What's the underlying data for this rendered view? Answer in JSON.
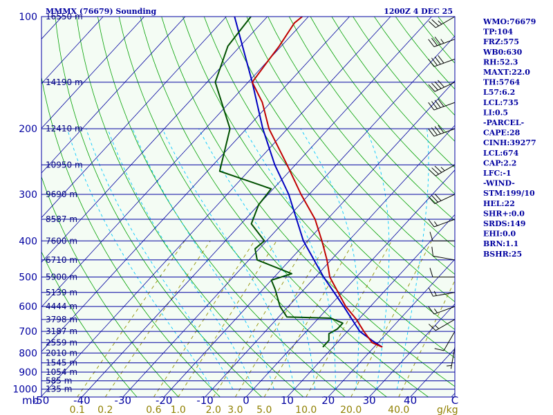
{
  "header": {
    "station": "MMMX (76679) Sounding",
    "time": "1200Z  4 DEC 25"
  },
  "stats": [
    "WMO:76679",
    "TP:104",
    "FRZ:575",
    "WB0:630",
    "RH:52.3",
    "MAXT:22.0",
    "TH:5764",
    "L57:6.2",
    "LCL:735",
    "LI:0.5",
    "-PARCEL-",
    "CAPE:28",
    "CINH:39277",
    "LCL:674",
    "CAP:2.2",
    "LFC:-1",
    "-WIND-",
    "STM:199/10",
    "HEL:22",
    "SHR+:0.0",
    "SRDS:149",
    "EHI:0.0",
    "BRN:1.1",
    "BSHR:25"
  ],
  "axis": {
    "pressure_unit": "mb",
    "mixing_ratio_unit": "g/kg",
    "temperature_end_label": "C"
  },
  "colors": {
    "frame": "#0000a0",
    "isobar": "#0000a0",
    "isotherm": "#0000a0",
    "dry_adiabat": "#00a000",
    "moist_adiabat": "#00c8ff",
    "mixing_ratio": "#909000",
    "temperature": "#c00000",
    "dewpoint": "#005000",
    "parcel": "#0000c0",
    "wind": "#000000",
    "text": "#0000a0",
    "mixing_label": "#908000"
  },
  "chart_data": {
    "type": "skew-t",
    "title": "MMMX (76679) Sounding",
    "pressure_levels": [
      1000,
      900,
      800,
      700,
      600,
      500,
      400,
      300,
      200,
      100
    ],
    "pressure_tick_labels": [
      "1000",
      "900",
      "800",
      "700",
      "600",
      "500",
      "400",
      "300",
      "200",
      "100"
    ],
    "plim": [
      1050,
      100
    ],
    "temperature_ticks": [
      -50,
      -40,
      -30,
      -20,
      -10,
      0,
      10,
      20,
      30,
      40
    ],
    "temperature_tick_labels": [
      "-50",
      "-40",
      "-30",
      "-20",
      "-10",
      "0",
      "10",
      "20",
      "30",
      "40"
    ],
    "mixing_ratio_ticks": [
      0.1,
      0.2,
      0.6,
      1.0,
      2.0,
      3.0,
      5.0,
      10.0,
      20.0,
      40.0
    ],
    "mixing_ratio_tick_labels": [
      "0.1",
      "0.2",
      "0.6",
      "1.0",
      "2.0",
      "3.0",
      "5.0",
      "10.0",
      "20.0",
      "40.0"
    ],
    "heights": [
      {
        "p": 1000,
        "label": "135 m"
      },
      {
        "p": 950,
        "label": "585 m"
      },
      {
        "p": 900,
        "label": "1054 m"
      },
      {
        "p": 850,
        "label": "1545 m"
      },
      {
        "p": 800,
        "label": "2010 m"
      },
      {
        "p": 750,
        "label": "2559 m"
      },
      {
        "p": 700,
        "label": "3187 m"
      },
      {
        "p": 650,
        "label": "3798 m"
      },
      {
        "p": 600,
        "label": "4444 m"
      },
      {
        "p": 550,
        "label": "5139 m"
      },
      {
        "p": 500,
        "label": "5900 m"
      },
      {
        "p": 450,
        "label": "6710 m"
      },
      {
        "p": 400,
        "label": "7600 m"
      },
      {
        "p": 350,
        "label": "8587 m"
      },
      {
        "p": 300,
        "label": "9690 m"
      },
      {
        "p": 250,
        "label": "10950 m"
      },
      {
        "p": 200,
        "label": "12410 m"
      },
      {
        "p": 150,
        "label": "14190 m"
      },
      {
        "p": 100,
        "label": "16550 m"
      }
    ],
    "temperature": [
      {
        "p": 771,
        "t": 22.0
      },
      {
        "p": 750,
        "t": 18.5
      },
      {
        "p": 700,
        "t": 14.0
      },
      {
        "p": 650,
        "t": 9.5
      },
      {
        "p": 600,
        "t": 4.0
      },
      {
        "p": 550,
        "t": -1.0
      },
      {
        "p": 500,
        "t": -6.5
      },
      {
        "p": 450,
        "t": -11.0
      },
      {
        "p": 400,
        "t": -16.5
      },
      {
        "p": 350,
        "t": -23.0
      },
      {
        "p": 300,
        "t": -32.0
      },
      {
        "p": 250,
        "t": -42.0
      },
      {
        "p": 200,
        "t": -54.5
      },
      {
        "p": 170,
        "t": -62.0
      },
      {
        "p": 150,
        "t": -69.0
      },
      {
        "p": 130,
        "t": -70.0
      },
      {
        "p": 120,
        "t": -70.5
      },
      {
        "p": 104,
        "t": -72.0
      },
      {
        "p": 100,
        "t": -71.5
      }
    ],
    "dewpoint": [
      {
        "p": 771,
        "t": 7.5
      },
      {
        "p": 740,
        "t": 7.5
      },
      {
        "p": 710,
        "t": 6.0
      },
      {
        "p": 690,
        "t": 7.0
      },
      {
        "p": 665,
        "t": 7.0
      },
      {
        "p": 645,
        "t": 3.0
      },
      {
        "p": 640,
        "t": -8.0
      },
      {
        "p": 600,
        "t": -12.0
      },
      {
        "p": 540,
        "t": -17.0
      },
      {
        "p": 510,
        "t": -20.0
      },
      {
        "p": 490,
        "t": -16.5
      },
      {
        "p": 450,
        "t": -28.0
      },
      {
        "p": 420,
        "t": -31.0
      },
      {
        "p": 400,
        "t": -30.5
      },
      {
        "p": 360,
        "t": -37.5
      },
      {
        "p": 320,
        "t": -40.0
      },
      {
        "p": 290,
        "t": -40.5
      },
      {
        "p": 260,
        "t": -57.0
      },
      {
        "p": 200,
        "t": -64.0
      },
      {
        "p": 150,
        "t": -78.0
      },
      {
        "p": 120,
        "t": -83.0
      },
      {
        "p": 100,
        "t": -84.0
      }
    ],
    "parcel": [
      {
        "p": 771,
        "t": 22.0
      },
      {
        "p": 740,
        "t": 18.0
      },
      {
        "p": 700,
        "t": 13.0
      },
      {
        "p": 600,
        "t": 3.5
      },
      {
        "p": 500,
        "t": -8.0
      },
      {
        "p": 400,
        "t": -21.0
      },
      {
        "p": 300,
        "t": -35.0
      },
      {
        "p": 250,
        "t": -45.0
      },
      {
        "p": 200,
        "t": -56.0
      },
      {
        "p": 150,
        "t": -69.0
      },
      {
        "p": 100,
        "t": -88.0
      }
    ],
    "wind_barbs": [
      {
        "p": 771,
        "dir": 190,
        "kt": 5
      },
      {
        "p": 700,
        "dir": 210,
        "kt": 10
      },
      {
        "p": 650,
        "dir": 240,
        "kt": 15
      },
      {
        "p": 600,
        "dir": 250,
        "kt": 15
      },
      {
        "p": 550,
        "dir": 260,
        "kt": 15
      },
      {
        "p": 500,
        "dir": 270,
        "kt": 10
      },
      {
        "p": 450,
        "dir": 280,
        "kt": 10
      },
      {
        "p": 400,
        "dir": 270,
        "kt": 10
      },
      {
        "p": 350,
        "dir": 250,
        "kt": 15
      },
      {
        "p": 300,
        "dir": 245,
        "kt": 30
      },
      {
        "p": 250,
        "dir": 240,
        "kt": 35
      },
      {
        "p": 200,
        "dir": 250,
        "kt": 40
      },
      {
        "p": 170,
        "dir": 250,
        "kt": 40
      },
      {
        "p": 150,
        "dir": 245,
        "kt": 40
      },
      {
        "p": 130,
        "dir": 250,
        "kt": 40
      },
      {
        "p": 115,
        "dir": 250,
        "kt": 35
      },
      {
        "p": 100,
        "dir": 240,
        "kt": 25
      }
    ]
  }
}
